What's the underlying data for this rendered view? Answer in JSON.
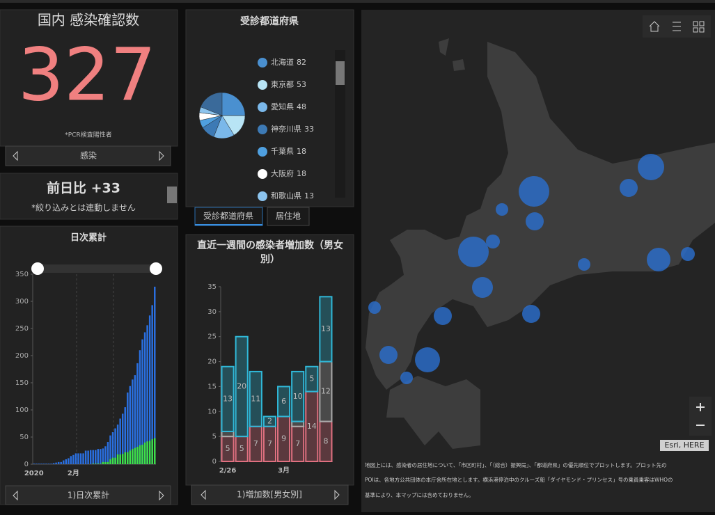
{
  "total_panel": {
    "title": "国内 感染確認数",
    "value": 327,
    "note": "*PCR検査陽性者",
    "nav": "感染"
  },
  "diff_panel": {
    "title": "前日比 +33",
    "note": "*絞り込みとは連動しません"
  },
  "prefecture_panel": {
    "title": "受診都道府県",
    "items": [
      {
        "name": "北海道",
        "count": 82,
        "color": "#4a90d0"
      },
      {
        "name": "東京都",
        "count": 53,
        "color": "#b8e4f5"
      },
      {
        "name": "愛知県",
        "count": 48,
        "color": "#7ab8ea"
      },
      {
        "name": "神奈川県",
        "count": 33,
        "color": "#3d7ab5"
      },
      {
        "name": "千葉県",
        "count": 18,
        "color": "#4fa0e0"
      },
      {
        "name": "大阪府",
        "count": 18,
        "color": "#ffffff"
      },
      {
        "name": "和歌山県",
        "count": 13,
        "color": "#8cc4ee"
      }
    ],
    "tabs": [
      "受診都道府県",
      "居住地"
    ]
  },
  "daily_chart": {
    "type": "bar",
    "title": "日次累計",
    "categories": [
      "2020",
      null,
      null,
      null,
      null,
      null,
      null,
      null,
      null,
      null,
      null,
      null,
      null,
      null,
      null,
      null,
      "2月",
      null,
      null,
      null,
      null,
      null,
      null,
      null,
      null,
      null,
      null,
      null,
      null,
      null,
      null,
      null,
      null,
      null,
      null,
      null,
      null,
      null,
      null,
      null,
      null,
      null,
      null,
      null,
      null,
      null,
      null,
      null,
      null,
      null
    ],
    "series": [
      {
        "color": "#2a6fe0",
        "values": [
          1,
          1,
          1,
          1,
          1,
          1,
          1,
          1,
          2,
          3,
          4,
          4,
          7,
          9,
          11,
          15,
          17,
          20,
          20,
          20,
          20,
          25,
          25,
          26,
          26,
          26,
          28,
          28,
          29,
          33,
          41,
          53,
          59,
          66,
          73,
          84,
          93,
          105,
          132,
          144,
          156,
          164,
          186,
          210,
          230,
          243,
          256,
          274,
          293,
          327
        ]
      },
      {
        "color": "#3ee04a",
        "values": [
          0,
          0,
          0,
          0,
          0,
          0,
          0,
          0,
          0,
          0,
          0,
          0,
          0,
          0,
          0,
          0,
          0,
          0,
          0,
          0,
          0,
          0,
          0,
          0,
          1,
          1,
          1,
          1,
          4,
          4,
          4,
          9,
          12,
          12,
          18,
          18,
          19,
          22,
          22,
          25,
          28,
          30,
          32,
          35,
          36,
          40,
          42,
          43,
          46,
          48
        ]
      }
    ],
    "ylim": [
      0,
      350
    ],
    "yticks": [
      0,
      50,
      100,
      150,
      200,
      250,
      300,
      350
    ],
    "nav": "1)日次累計"
  },
  "weekly_chart": {
    "type": "bar",
    "stacked": true,
    "title": "直近一週間の感染者増加数（男女別）",
    "categories": [
      "2/26",
      null,
      null,
      null,
      "3月",
      null,
      null,
      null
    ],
    "series": [
      {
        "color": "#e07080",
        "values": [
          5,
          5,
          7,
          7,
          9,
          7,
          14,
          8
        ]
      },
      {
        "color": "#aaaaaa",
        "values": [
          1,
          0,
          0,
          0,
          0,
          1,
          0,
          12
        ]
      },
      {
        "color": "#30b8d8",
        "values": [
          13,
          20,
          11,
          2,
          6,
          10,
          5,
          13
        ]
      }
    ],
    "ylim": [
      0,
      35
    ],
    "yticks": [
      0,
      5,
      10,
      15,
      20,
      25,
      30,
      35
    ],
    "nav": "1)増加数[男女別]"
  },
  "map": {
    "attribution": "Esri, HERE",
    "note": [
      "地図上には、感染者の居住地について、「市区町村」、「（総合）振興局」、「都道府県」の優先順位でプロットします。プロット先の",
      "POIは、各地方公共団体の本庁舎所在地とします。横浜港停泊中のクルーズ船「ダイヤモンド・プリンセス」号の乗員乗客はWHOの",
      "基準により、本マップには含めておりません。"
    ]
  }
}
